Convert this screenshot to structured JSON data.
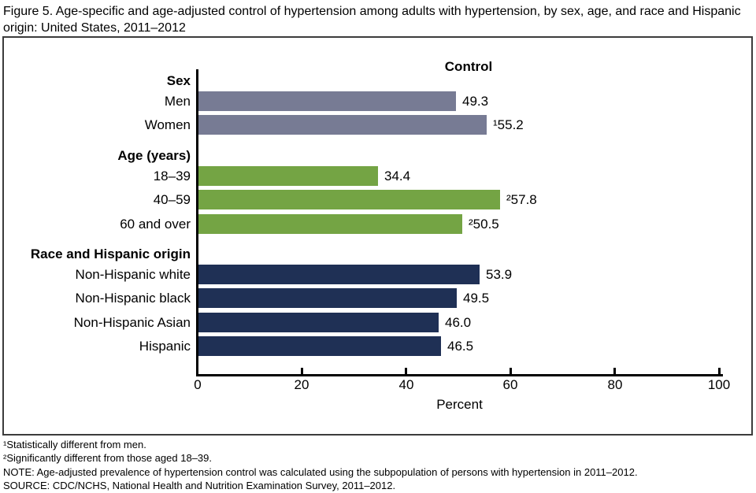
{
  "figure_title": "Figure 5. Age-specific and age-adjusted control of hypertension among adults with hypertension, by sex, age, and race and Hispanic origin: United States, 2011–2012",
  "chart_data": {
    "type": "bar",
    "orientation": "horizontal",
    "column_header": "Control",
    "xlabel": "Percent",
    "xlim": [
      0,
      100
    ],
    "xticks": [
      "0",
      "20",
      "40",
      "60",
      "80",
      "100"
    ],
    "axis_color": "#000000",
    "groups": [
      {
        "header": "Sex",
        "color": "#777b94",
        "bars": [
          {
            "label": "Men",
            "value": 49.3,
            "value_label": "49.3"
          },
          {
            "label": "Women",
            "value": 55.2,
            "value_label": "¹55.2"
          }
        ]
      },
      {
        "header": "Age (years)",
        "color": "#74a444",
        "bars": [
          {
            "label": "18–39",
            "value": 34.4,
            "value_label": "34.4"
          },
          {
            "label": "40–59",
            "value": 57.8,
            "value_label": "²57.8"
          },
          {
            "label": "60 and over",
            "value": 50.5,
            "value_label": "²50.5"
          }
        ]
      },
      {
        "header": "Race and Hispanic origin",
        "color": "#1f3055",
        "bars": [
          {
            "label": "Non-Hispanic white",
            "value": 53.9,
            "value_label": "53.9"
          },
          {
            "label": "Non-Hispanic black",
            "value": 49.5,
            "value_label": "49.5"
          },
          {
            "label": "Non-Hispanic Asian",
            "value": 46.0,
            "value_label": "46.0"
          },
          {
            "label": "Hispanic",
            "value": 46.5,
            "value_label": "46.5"
          }
        ]
      }
    ]
  },
  "footnotes": [
    "¹Statistically different from men.",
    "²Significantly different from those aged 18–39.",
    "NOTE: Age-adjusted prevalence of hypertension control was calculated using the subpopulation of persons with hypertension in 2011–2012.",
    "SOURCE: CDC/NCHS, National Health and Nutrition Examination Survey, 2011–2012."
  ]
}
